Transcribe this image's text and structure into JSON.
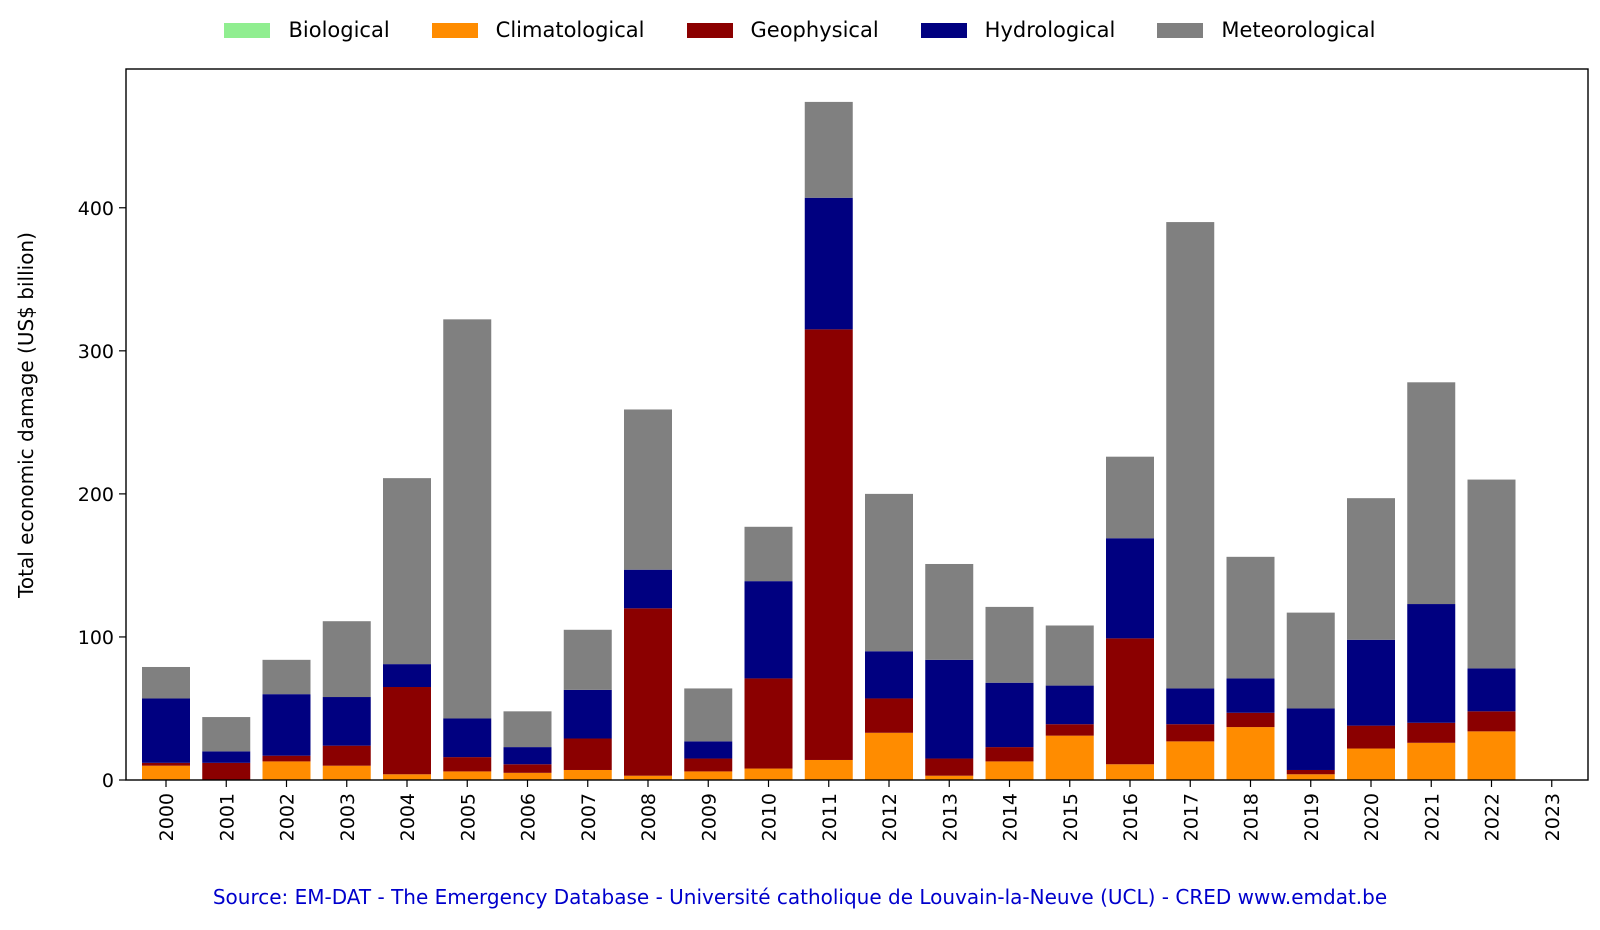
{
  "chart_data": {
    "type": "bar",
    "stacked": true,
    "categories": [
      "2000",
      "2001",
      "2002",
      "2003",
      "2004",
      "2005",
      "2006",
      "2007",
      "2008",
      "2009",
      "2010",
      "2011",
      "2012",
      "2013",
      "2014",
      "2015",
      "2016",
      "2017",
      "2018",
      "2019",
      "2020",
      "2021",
      "2022",
      "2023"
    ],
    "series": [
      {
        "name": "Biological",
        "color": "#90ee90",
        "values": [
          0,
          0,
          0,
          0,
          0,
          0,
          0,
          0,
          0,
          0,
          0,
          0,
          0,
          0,
          0,
          0,
          0,
          0,
          0,
          0,
          0,
          0,
          0,
          0
        ]
      },
      {
        "name": "Climatological",
        "color": "#ff8c00",
        "values": [
          10,
          0,
          13,
          10,
          4,
          6,
          5,
          7,
          3,
          6,
          8,
          14,
          33,
          3,
          13,
          31,
          11,
          27,
          37,
          4,
          22,
          26,
          34,
          0
        ]
      },
      {
        "name": "Geophysical",
        "color": "#8b0000",
        "values": [
          2,
          12,
          4,
          14,
          61,
          10,
          6,
          22,
          117,
          9,
          63,
          301,
          24,
          12,
          10,
          8,
          88,
          12,
          10,
          3,
          16,
          14,
          14,
          0
        ]
      },
      {
        "name": "Hydrological",
        "color": "#000080",
        "values": [
          45,
          8,
          43,
          34,
          16,
          27,
          12,
          34,
          27,
          12,
          68,
          92,
          33,
          69,
          45,
          27,
          70,
          25,
          24,
          43,
          60,
          83,
          30,
          0
        ]
      },
      {
        "name": "Meteorological",
        "color": "#808080",
        "values": [
          22,
          24,
          24,
          53,
          130,
          279,
          25,
          42,
          112,
          37,
          38,
          67,
          110,
          67,
          53,
          42,
          57,
          326,
          85,
          67,
          99,
          155,
          132,
          0
        ]
      }
    ],
    "xlabel": "",
    "ylabel": "Total economic damage (US$ billion)",
    "yticks": [
      0,
      100,
      200,
      300,
      400
    ],
    "ylim": [
      0,
      497
    ],
    "legend_position": "top-center",
    "grid": false,
    "source": "Source: EM-DAT - The Emergency Database - Université catholique de Louvain-la-Neuve (UCL) - CRED www.emdat.be"
  }
}
